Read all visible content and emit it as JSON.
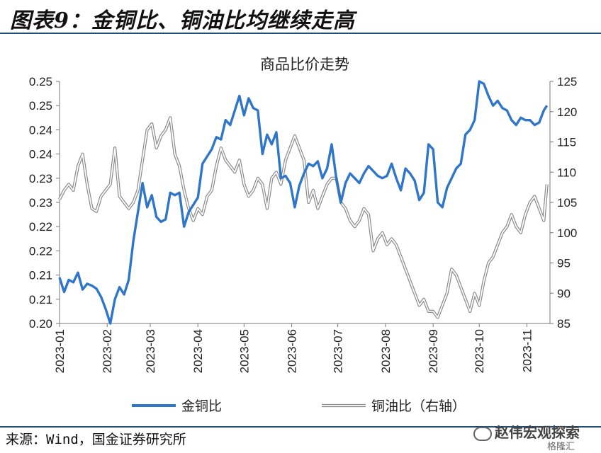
{
  "header": {
    "title": "图表9：金铜比、铜油比均继续走高"
  },
  "footer": {
    "source": "来源：Wind，国金证券研究所"
  },
  "watermark": {
    "text": "赵伟宏观探索",
    "sub": "格隆汇",
    "icon": "wechat-icon"
  },
  "colors": {
    "series1": "#2f75c8",
    "series2": "#aaaaaa",
    "rule": "#1f4e79"
  },
  "chart_data": {
    "type": "line",
    "title": "商品比价走势",
    "x_ticks": [
      "2023-01",
      "2023-02",
      "2023-03",
      "2023-04",
      "2023-05",
      "2023-06",
      "2023-07",
      "2023-08",
      "2023-09",
      "2023-10",
      "2023-11"
    ],
    "y_left_ticks": [
      "0.20",
      "0.21",
      "0.21",
      "0.22",
      "0.22",
      "0.23",
      "0.23",
      "0.24",
      "0.24",
      "0.25",
      "0.25"
    ],
    "y_left_lim": [
      0.2,
      0.25
    ],
    "y_right_ticks": [
      "85",
      "90",
      "95",
      "100",
      "105",
      "110",
      "115",
      "120",
      "125"
    ],
    "y_right_lim": [
      85,
      125
    ],
    "series": [
      {
        "name": "金铜比",
        "axis": "left",
        "x": [
          "2023-01-01",
          "2023-01-04",
          "2023-01-07",
          "2023-01-10",
          "2023-01-13",
          "2023-01-16",
          "2023-01-19",
          "2023-01-22",
          "2023-01-25",
          "2023-01-28",
          "2023-01-31",
          "2023-02-03",
          "2023-02-06",
          "2023-02-09",
          "2023-02-12",
          "2023-02-15",
          "2023-02-18",
          "2023-02-21",
          "2023-02-24",
          "2023-02-27",
          "2023-03-02",
          "2023-03-05",
          "2023-03-08",
          "2023-03-11",
          "2023-03-14",
          "2023-03-17",
          "2023-03-20",
          "2023-03-23",
          "2023-03-26",
          "2023-03-29",
          "2023-04-01",
          "2023-04-04",
          "2023-04-07",
          "2023-04-10",
          "2023-04-13",
          "2023-04-16",
          "2023-04-19",
          "2023-04-22",
          "2023-04-25",
          "2023-04-28",
          "2023-05-01",
          "2023-05-04",
          "2023-05-07",
          "2023-05-10",
          "2023-05-13",
          "2023-05-16",
          "2023-05-19",
          "2023-05-22",
          "2023-05-25",
          "2023-05-28",
          "2023-05-31",
          "2023-06-03",
          "2023-06-06",
          "2023-06-09",
          "2023-06-12",
          "2023-06-15",
          "2023-06-18",
          "2023-06-21",
          "2023-06-24",
          "2023-06-27",
          "2023-06-30",
          "2023-07-03",
          "2023-07-06",
          "2023-07-09",
          "2023-07-12",
          "2023-07-15",
          "2023-07-18",
          "2023-07-21",
          "2023-07-24",
          "2023-07-27",
          "2023-07-30",
          "2023-08-02",
          "2023-08-05",
          "2023-08-08",
          "2023-08-11",
          "2023-08-14",
          "2023-08-17",
          "2023-08-20",
          "2023-08-23",
          "2023-08-26",
          "2023-08-29",
          "2023-09-01",
          "2023-09-04",
          "2023-09-07",
          "2023-09-10",
          "2023-09-13",
          "2023-09-16",
          "2023-09-19",
          "2023-09-22",
          "2023-09-25",
          "2023-09-28",
          "2023-10-01",
          "2023-10-04",
          "2023-10-07",
          "2023-10-10",
          "2023-10-13",
          "2023-10-16",
          "2023-10-19",
          "2023-10-22",
          "2023-10-25",
          "2023-10-28",
          "2023-10-31",
          "2023-11-03",
          "2023-11-06",
          "2023-11-09",
          "2023-11-12",
          "2023-11-14"
        ],
        "values": [
          0.2095,
          0.2065,
          0.209,
          0.2085,
          0.2105,
          0.207,
          0.2082,
          0.2078,
          0.2072,
          0.2055,
          0.203,
          0.2,
          0.205,
          0.2075,
          0.206,
          0.209,
          0.217,
          0.223,
          0.229,
          0.224,
          0.2265,
          0.222,
          0.221,
          0.2215,
          0.227,
          0.2265,
          0.227,
          0.22,
          0.223,
          0.2245,
          0.226,
          0.233,
          0.2345,
          0.236,
          0.2385,
          0.238,
          0.242,
          0.241,
          0.244,
          0.247,
          0.243,
          0.2465,
          0.2445,
          0.244,
          0.235,
          0.239,
          0.237,
          0.2395,
          0.23,
          0.2305,
          0.229,
          0.224,
          0.2285,
          0.231,
          0.233,
          0.2325,
          0.2335,
          0.23,
          0.232,
          0.237,
          0.23,
          0.225,
          0.229,
          0.231,
          0.23,
          0.229,
          0.231,
          0.2325,
          0.2315,
          0.2305,
          0.23,
          0.2305,
          0.233,
          0.23,
          0.2275,
          0.232,
          0.231,
          0.2295,
          0.2255,
          0.227,
          0.237,
          0.236,
          0.225,
          0.224,
          0.228,
          0.23,
          0.232,
          0.233,
          0.239,
          0.24,
          0.242,
          0.25,
          0.2495,
          0.247,
          0.245,
          0.246,
          0.2445,
          0.244,
          0.242,
          0.241,
          0.2425,
          0.242,
          0.242,
          0.241,
          0.2415,
          0.244,
          0.245
        ]
      },
      {
        "name": "铜油比（右轴）",
        "axis": "right",
        "x": [
          "2023-01-01",
          "2023-01-04",
          "2023-01-07",
          "2023-01-10",
          "2023-01-13",
          "2023-01-16",
          "2023-01-19",
          "2023-01-22",
          "2023-01-25",
          "2023-01-28",
          "2023-01-31",
          "2023-02-03",
          "2023-02-06",
          "2023-02-09",
          "2023-02-12",
          "2023-02-15",
          "2023-02-18",
          "2023-02-21",
          "2023-02-24",
          "2023-02-27",
          "2023-03-02",
          "2023-03-05",
          "2023-03-08",
          "2023-03-11",
          "2023-03-14",
          "2023-03-17",
          "2023-03-20",
          "2023-03-23",
          "2023-03-26",
          "2023-03-29",
          "2023-04-01",
          "2023-04-04",
          "2023-04-07",
          "2023-04-10",
          "2023-04-13",
          "2023-04-16",
          "2023-04-19",
          "2023-04-22",
          "2023-04-25",
          "2023-04-28",
          "2023-05-01",
          "2023-05-04",
          "2023-05-07",
          "2023-05-10",
          "2023-05-13",
          "2023-05-16",
          "2023-05-19",
          "2023-05-22",
          "2023-05-25",
          "2023-05-28",
          "2023-05-31",
          "2023-06-03",
          "2023-06-06",
          "2023-06-09",
          "2023-06-12",
          "2023-06-15",
          "2023-06-18",
          "2023-06-21",
          "2023-06-24",
          "2023-06-27",
          "2023-06-30",
          "2023-07-03",
          "2023-07-06",
          "2023-07-09",
          "2023-07-12",
          "2023-07-15",
          "2023-07-18",
          "2023-07-21",
          "2023-07-24",
          "2023-07-27",
          "2023-07-30",
          "2023-08-02",
          "2023-08-05",
          "2023-08-08",
          "2023-08-11",
          "2023-08-14",
          "2023-08-17",
          "2023-08-20",
          "2023-08-23",
          "2023-08-26",
          "2023-08-29",
          "2023-09-01",
          "2023-09-04",
          "2023-09-07",
          "2023-09-10",
          "2023-09-13",
          "2023-09-16",
          "2023-09-19",
          "2023-09-22",
          "2023-09-25",
          "2023-09-28",
          "2023-10-01",
          "2023-10-04",
          "2023-10-07",
          "2023-10-10",
          "2023-10-13",
          "2023-10-16",
          "2023-10-19",
          "2023-10-22",
          "2023-10-25",
          "2023-10-28",
          "2023-10-31",
          "2023-11-03",
          "2023-11-06",
          "2023-11-09",
          "2023-11-12",
          "2023-11-14"
        ],
        "values": [
          105.5,
          107,
          108,
          107,
          111,
          113,
          108,
          104,
          103.5,
          106,
          107,
          108,
          114,
          106,
          105,
          104,
          105,
          107,
          112,
          117,
          118,
          114,
          116,
          117,
          119,
          113,
          111,
          107,
          104,
          102,
          104,
          103,
          106,
          107,
          111,
          114,
          112,
          111,
          110,
          112,
          108,
          106,
          107,
          109,
          108,
          104,
          109,
          110,
          108,
          112,
          114,
          116,
          114,
          112,
          105,
          107,
          104,
          106,
          108,
          109,
          109,
          105,
          104,
          102,
          101,
          102,
          104,
          103,
          97,
          99,
          100,
          98,
          99,
          98,
          96,
          94,
          92,
          90,
          88,
          89,
          87,
          87,
          86,
          88,
          90,
          94,
          93,
          91,
          89,
          87,
          90,
          88,
          92,
          95,
          96,
          98,
          100,
          101,
          103,
          101,
          100,
          103,
          105,
          106,
          104,
          102,
          108
        ]
      }
    ]
  }
}
